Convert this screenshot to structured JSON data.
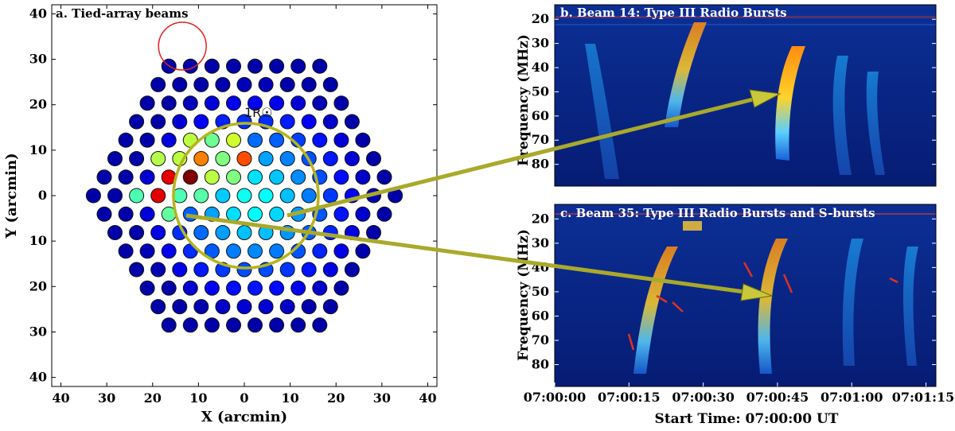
{
  "colors": {
    "ring": "#b5b51c",
    "highlight": "#e02020",
    "spectrogram_bg": "#0a2a8c",
    "arrow": "#c8c83a"
  },
  "chart_data": [
    {
      "type": "scatter",
      "title": "a. Tied-array beams",
      "xlabel": "X (arcmin)",
      "ylabel": "Y (arcmin)",
      "xlim": [
        42,
        -42
      ],
      "ylim": [
        -42,
        42
      ],
      "xticks": [
        40,
        30,
        20,
        10,
        0,
        10,
        20,
        30,
        40
      ],
      "yticks": [
        40,
        30,
        20,
        10,
        0,
        10,
        20,
        30,
        40
      ],
      "ring_label": "1R☉",
      "ring_radius": 16,
      "grid": false,
      "beam_spacing": 4.7,
      "hex_rings": 7,
      "highlight_beam": [
        -13.5,
        32.9
      ],
      "beams": [
        {
          "x": -13.5,
          "y": -4.5,
          "level": 1.0
        },
        {
          "x": -18.2,
          "y": -2.2,
          "level": 0.9
        },
        {
          "x": -2.4,
          "y": -8.9,
          "level": 0.8
        },
        {
          "x": -8.2,
          "y": -7.3,
          "level": 0.75
        },
        {
          "x": -1.8,
          "y": -11.3,
          "level": 0.58
        },
        {
          "x": -6.3,
          "y": -3.6,
          "level": 0.56
        },
        {
          "x": -16.8,
          "y": -8.0,
          "level": 0.55
        },
        {
          "x": -12.8,
          "y": -10.1,
          "level": 0.56
        },
        {
          "x": -3.2,
          "y": -5.9,
          "level": 0.5
        },
        {
          "x": -23.2,
          "y": -0.5,
          "level": 0.45
        },
        {
          "x": -16.7,
          "y": 3.4,
          "level": 0.47
        },
        {
          "x": -13.2,
          "y": 1.4,
          "level": 0.45
        },
        {
          "x": -8.1,
          "y": -12.7,
          "level": 0.48
        },
        {
          "x": -11.3,
          "y": -1.2,
          "level": 0.46
        }
      ]
    },
    {
      "type": "heatmap",
      "title": "b. Beam 14: Type III Radio Bursts",
      "ylabel": "Frequency (MHz)",
      "yticks": [
        20,
        30,
        40,
        50,
        60,
        70,
        80
      ],
      "ylim": [
        89,
        14
      ]
    },
    {
      "type": "heatmap",
      "title": "c. Beam 35: Type III Radio Bursts and S-bursts",
      "xlabel": "Start Time: 07:00:00 UT",
      "ylabel": "Frequency (MHz)",
      "xticks": [
        "07:00:00",
        "07:00:15",
        "07:00:30",
        "07:00:45",
        "07:01:00",
        "07:01:15"
      ],
      "xlim_s": [
        0,
        77
      ],
      "yticks": [
        20,
        30,
        40,
        50,
        60,
        70,
        80
      ],
      "ylim": [
        89,
        14
      ]
    }
  ]
}
